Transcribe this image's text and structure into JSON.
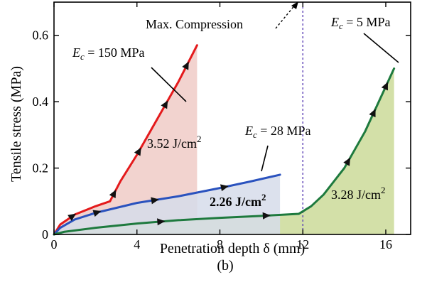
{
  "chart_data": {
    "type": "area",
    "caption": "(b)",
    "xlabel": "Penetration depth δ (mm)",
    "ylabel": "Tensile stress (MPa)",
    "xlim": [
      0,
      17.2
    ],
    "ylim": [
      0,
      0.7
    ],
    "xticks": [
      0,
      4,
      8,
      12,
      16
    ],
    "yticks": [
      0,
      0.2,
      0.4,
      0.6
    ],
    "ytick_labels": [
      "0",
      "0.2",
      "0.4",
      "0.6"
    ],
    "vline_x": 12,
    "series": [
      {
        "name": "Ec = 150 MPa",
        "color": "#e41a1c",
        "fill": "#f2d3cf",
        "x": [
          0,
          0.3,
          1,
          2,
          2.7,
          3.2,
          4,
          5,
          6,
          6.9
        ],
        "y": [
          0,
          0.03,
          0.06,
          0.085,
          0.1,
          0.16,
          0.24,
          0.35,
          0.46,
          0.57
        ],
        "area_label": "3.52 J/cm²",
        "arrows_at": [
          0.1,
          0.3,
          0.5,
          0.72,
          0.9
        ]
      },
      {
        "name": "Ec = 28 MPa",
        "color": "#2a52be",
        "fill": "#d6dcea",
        "x": [
          0,
          0.3,
          1,
          2,
          4,
          6,
          8,
          9.5,
          10.9
        ],
        "y": [
          0,
          0.02,
          0.045,
          0.065,
          0.095,
          0.115,
          0.14,
          0.16,
          0.18
        ],
        "area_label": "2.26 J/cm²",
        "arrows_at": [
          0.2,
          0.45,
          0.75
        ]
      },
      {
        "name": "Ec = 5 MPa",
        "color": "#1e7a3e",
        "fill": "#d3e0a8",
        "x": [
          0,
          0.5,
          2,
          4,
          6,
          8,
          10,
          11.8,
          12.4,
          13,
          14,
          15,
          16.4
        ],
        "y": [
          0,
          0.008,
          0.02,
          0.033,
          0.043,
          0.05,
          0.056,
          0.062,
          0.085,
          0.12,
          0.2,
          0.31,
          0.5
        ],
        "area_label": "3.28 J/cm²",
        "arrows_at": [
          0.25,
          0.5,
          0.75,
          0.88,
          0.95
        ]
      }
    ],
    "labels": {
      "ec_150": "E<sub>c</sub> = 150 MPa",
      "ec_28": "E<sub>c</sub> = 28 MPa",
      "ec_5": "E<sub>c</sub> = 5 MPa",
      "max_compression": "Max. Compression"
    }
  }
}
